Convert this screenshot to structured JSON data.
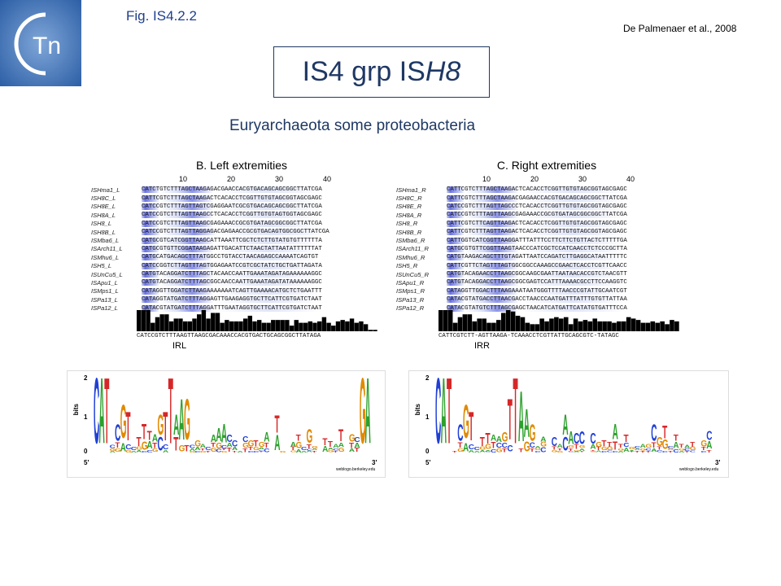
{
  "header": {
    "logo_text": "Tn",
    "figure_label": "Fig. IS4.2.2",
    "reference": "De Palmenaer et al., 2008",
    "title_prefix": "IS4 grp IS",
    "title_italic": "H8",
    "subtitle": "Euryarchaeota some proteobacteria"
  },
  "left_panel": {
    "title": "B. Left extremities",
    "ticks": [
      "10",
      "20",
      "30",
      "40"
    ],
    "rows": [
      {
        "name": "ISHma1_L",
        "seq": "CATCTGTCTTTAGCTAAGAGACGAACCACGTGACAGCAGCGGCTTATCGA"
      },
      {
        "name": "ISH8C_L",
        "seq": "CATTCGTCTTTAGCTAAGACTCACACCTCGGTTGTGTAGCGGTAGCGAGC"
      },
      {
        "name": "ISH8E_L",
        "seq": "CATCCGTCTTTAGTTAGTCGAGGAATCGCGTGACAGCAGCGGCTTATCGA"
      },
      {
        "name": "ISH8A_L",
        "seq": "CATCCGTCTTTAGTTAAGCCTCACACCTCGGTTGTGTAGTGGTAGCGAGC"
      },
      {
        "name": "ISH8_L",
        "seq": "CATCCGTCTTTAGTTAAGCGAGAAACCGCGTGATAGCGGCGGCTTATCGA"
      },
      {
        "name": "ISH8B_L",
        "seq": "CATCCGTCTTTAGTTAGGAGACGAGAACCGCGTGACAGTGGCGGCTTATCGA"
      },
      {
        "name": "ISMba6_L",
        "seq": "CATGCGTCATCGGTTAAGCATTAAATTCGCTCTCTTGTATGTGTTTTTTA"
      },
      {
        "name": "ISArch11_L",
        "seq": "CATGCGTGTTCGGATAAGAGATTGACATTCTAACTATTAATATTTTTTAT"
      },
      {
        "name": "ISMhu6_L",
        "seq": "CATGCATGACAGCTTTATGGCCTGTACCTAACAGAGCCAAAATCAGTGT"
      },
      {
        "name": "ISH5_L",
        "seq": "CATCCGGTCTTAGTTTAGTGGAGAATCCGTCGCTATCTGCTGATTAGATA"
      },
      {
        "name": "ISUnCu5_L",
        "seq": "CATGTACAGGATCTTTAGCTACAACCAATTGAAATAGATAGAAAAAAGGC"
      },
      {
        "name": "ISApu1_L",
        "seq": "CATGTACAGGATCTTTAGCGGCAACCAATTGAAATAGATATAAAAAAGGC"
      },
      {
        "name": "ISMps1_L",
        "seq": "CATAGGTTGGATCTTAAGAAAAAAATCAGTTGAAAACATGCTCTGAATTT"
      },
      {
        "name": "ISPa13_L",
        "seq": "CATAGGTATGATCTTTAGGAGTTGAAGAGGTGCTTCATTCGTGATCTAAT"
      },
      {
        "name": "ISPa12_L",
        "seq": "CATACGTATGATCTTTAGGATTTGAATAGGTGCTTCATTCGTGATCTAAT"
      }
    ],
    "consensus": "CATCCGTCTTTAAGTTAAGCGACAAACCACGTGACTGCAGCGGCTTATAGA",
    "ir_label": "IRL"
  },
  "right_panel": {
    "title": "C. Right extremities",
    "ticks": [
      "10",
      "20",
      "30",
      "40"
    ],
    "rows": [
      {
        "name": "ISHma1_R",
        "seq": "CATTCGTCTTTAGCTAAGACTCACACCTCGGTTGTGTAGCGGTAGCGAGC"
      },
      {
        "name": "ISH8C_R",
        "seq": "CATTCGTCTTTAGCTAAGACGAGAACCACGTGACAGCAGCGGCTTATCGA"
      },
      {
        "name": "ISH8E_R",
        "seq": "CATCCGTCTTTAGTTAGCCCTCACACCTCGGTTGTGTAGCGGTAGCGAGC"
      },
      {
        "name": "ISH8A_R",
        "seq": "CATCCGTCTTTAGTTAAGCGAGAAACCGCGTGATAGCGGCGGCTTATCGA"
      },
      {
        "name": "ISH8_R",
        "seq": "CATTCGTCTTCAGTTAAGACTCACACCTCGGTTGTGTAGCGGTAGCGAGC"
      },
      {
        "name": "ISH8B_R",
        "seq": "CATTCGTCTTTAGTTAAGACTCACACCTCGGTTGTGTAGCGGTAGCGAGC"
      },
      {
        "name": "ISMba6_R",
        "seq": "CATTGGTCATCGGTTAAGGATTTATTTCCTTCTTCTGTTACTCTTTTTGA"
      },
      {
        "name": "ISArch11_R",
        "seq": "CATGCGTGTTCGGTTAAGTAACCCATCGCTCCATCAACCTCTCCCGCTTA"
      },
      {
        "name": "ISMhu6_R",
        "seq": "CATGTAAGACAGCTTTGTAGATTAATCCAGATCTTGAGGCATAATTTTTC"
      },
      {
        "name": "ISH5_R",
        "seq": "CATTCGTTCTAGTTTAGTGGCGGCCAAAGCCGAACTCACCTCGTTCAACC"
      },
      {
        "name": "ISUnCu5_R",
        "seq": "CATGTACAGAACCTTAAGCGGCAAGCGAATTAATAACACCGTCTAACGTT"
      },
      {
        "name": "ISApu1_R",
        "seq": "CATGTACAGGACCTTAAGCGGCGAGTCCATTTAAAACGCCTTCCAAGGTC"
      },
      {
        "name": "ISMps1_R",
        "seq": "CATAGGTTGGACTTTAAGAAATAATGGGTTTTAACCCGTATTGCAATCGT"
      },
      {
        "name": "ISPa13_R",
        "seq": "CATACGTATGACCTTAACGACCTAACCCAATGATTTATTTGTGTTATTAA"
      },
      {
        "name": "ISPa12_R",
        "seq": "CATACGTATGTCTTTAGCGAGCTAACATCATGATTCATATGTGATTTCCA"
      }
    ],
    "consensus": "CATTCGTCTT-AGTTAAGA-TCAAACCTCGTTATTGCAGCGTC-TATAGC",
    "ir_label": "IRR"
  },
  "left_logo": {
    "axis_top": "2",
    "axis_mid": "1",
    "axis_zero": "0",
    "axis_label": "bits",
    "five_prime": "5'",
    "three_prime": "3'",
    "credit": "weblogo.berkeley.edu"
  },
  "right_logo": {
    "axis_top": "2",
    "axis_mid": "1",
    "axis_zero": "0",
    "axis_label": "bits",
    "five_prime": "5'",
    "three_prime": "3'",
    "credit": "weblogo.berkeley.edu"
  },
  "colors": {
    "title": "#1f3864",
    "fig_label": "#1f3f8c",
    "highlight": "#6a72e0",
    "A": "#2ca02c",
    "C": "#1f3fd6",
    "G": "#e08a00",
    "T": "#d62728"
  }
}
